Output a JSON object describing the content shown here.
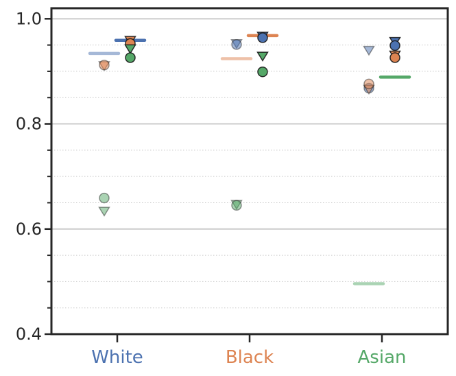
{
  "chart_data": {
    "type": "scatter",
    "title": "",
    "xlabel": "",
    "ylabel": "",
    "ylim": [
      0.4,
      1.02
    ],
    "yticks": [
      0.4,
      0.6,
      0.8,
      1.0
    ],
    "ytick_labels": [
      "0.4",
      "0.6",
      "0.8",
      "1.0"
    ],
    "grid": {
      "major": true,
      "minor_step": 0.05
    },
    "categories": [
      {
        "label": "White",
        "color": "#4c72b0"
      },
      {
        "label": "Black",
        "color": "#dd8452"
      },
      {
        "label": "Asian",
        "color": "#55a868"
      }
    ],
    "bars": [
      {
        "category": "White",
        "slot": "left",
        "color": "#4c72b0",
        "value": 0.934,
        "faded": true
      },
      {
        "category": "White",
        "slot": "right",
        "color": "#4c72b0",
        "value": 0.959,
        "faded": false
      },
      {
        "category": "Black",
        "slot": "left",
        "color": "#dd8452",
        "value": 0.924,
        "faded": true
      },
      {
        "category": "Black",
        "slot": "right",
        "color": "#dd8452",
        "value": 0.968,
        "faded": false
      },
      {
        "category": "Asian",
        "slot": "left",
        "color": "#55a868",
        "value": 0.496,
        "faded": true
      },
      {
        "category": "Asian",
        "slot": "right",
        "color": "#55a868",
        "value": 0.889,
        "faded": false
      }
    ],
    "points": [
      {
        "category": "White",
        "slot": "left",
        "color": "#dd8452",
        "marker": "triangle",
        "value": 0.911,
        "faded": true
      },
      {
        "category": "White",
        "slot": "left",
        "color": "#dd8452",
        "marker": "circle",
        "value": 0.912,
        "faded": true
      },
      {
        "category": "White",
        "slot": "left",
        "color": "#55a868",
        "marker": "circle",
        "value": 0.659,
        "faded": true
      },
      {
        "category": "White",
        "slot": "left",
        "color": "#55a868",
        "marker": "triangle",
        "value": 0.634,
        "faded": true
      },
      {
        "category": "White",
        "slot": "right",
        "color": "#dd8452",
        "marker": "triangle",
        "value": 0.959,
        "faded": false
      },
      {
        "category": "White",
        "slot": "right",
        "color": "#dd8452",
        "marker": "circle",
        "value": 0.953,
        "faded": false
      },
      {
        "category": "White",
        "slot": "right",
        "color": "#55a868",
        "marker": "triangle",
        "value": 0.943,
        "faded": false
      },
      {
        "category": "White",
        "slot": "right",
        "color": "#55a868",
        "marker": "circle",
        "value": 0.926,
        "faded": false
      },
      {
        "category": "Black",
        "slot": "left",
        "color": "#4c72b0",
        "marker": "triangle",
        "value": 0.953,
        "faded": true
      },
      {
        "category": "Black",
        "slot": "left",
        "color": "#4c72b0",
        "marker": "circle",
        "value": 0.951,
        "faded": true
      },
      {
        "category": "Black",
        "slot": "left",
        "color": "#55a868",
        "marker": "triangle",
        "value": 0.647,
        "faded": true
      },
      {
        "category": "Black",
        "slot": "left",
        "color": "#55a868",
        "marker": "circle",
        "value": 0.645,
        "faded": true
      },
      {
        "category": "Black",
        "slot": "right",
        "color": "#4c72b0",
        "marker": "triangle",
        "value": 0.967,
        "faded": false
      },
      {
        "category": "Black",
        "slot": "right",
        "color": "#4c72b0",
        "marker": "circle",
        "value": 0.964,
        "faded": false
      },
      {
        "category": "Black",
        "slot": "right",
        "color": "#55a868",
        "marker": "triangle",
        "value": 0.929,
        "faded": false
      },
      {
        "category": "Black",
        "slot": "right",
        "color": "#55a868",
        "marker": "circle",
        "value": 0.899,
        "faded": false
      },
      {
        "category": "Asian",
        "slot": "left",
        "color": "#4c72b0",
        "marker": "triangle",
        "value": 0.94,
        "faded": true
      },
      {
        "category": "Asian",
        "slot": "left",
        "color": "#4c72b0",
        "marker": "circle",
        "value": 0.868,
        "faded": true
      },
      {
        "category": "Asian",
        "slot": "left",
        "color": "#dd8452",
        "marker": "triangle",
        "value": 0.866,
        "faded": true
      },
      {
        "category": "Asian",
        "slot": "left",
        "color": "#dd8452",
        "marker": "circle",
        "value": 0.876,
        "faded": true
      },
      {
        "category": "Asian",
        "slot": "right",
        "color": "#4c72b0",
        "marker": "triangle",
        "value": 0.957,
        "faded": false
      },
      {
        "category": "Asian",
        "slot": "right",
        "color": "#4c72b0",
        "marker": "circle",
        "value": 0.949,
        "faded": false
      },
      {
        "category": "Asian",
        "slot": "right",
        "color": "#dd8452",
        "marker": "triangle",
        "value": 0.931,
        "faded": false
      },
      {
        "category": "Asian",
        "slot": "right",
        "color": "#dd8452",
        "marker": "circle",
        "value": 0.926,
        "faded": false
      }
    ]
  }
}
